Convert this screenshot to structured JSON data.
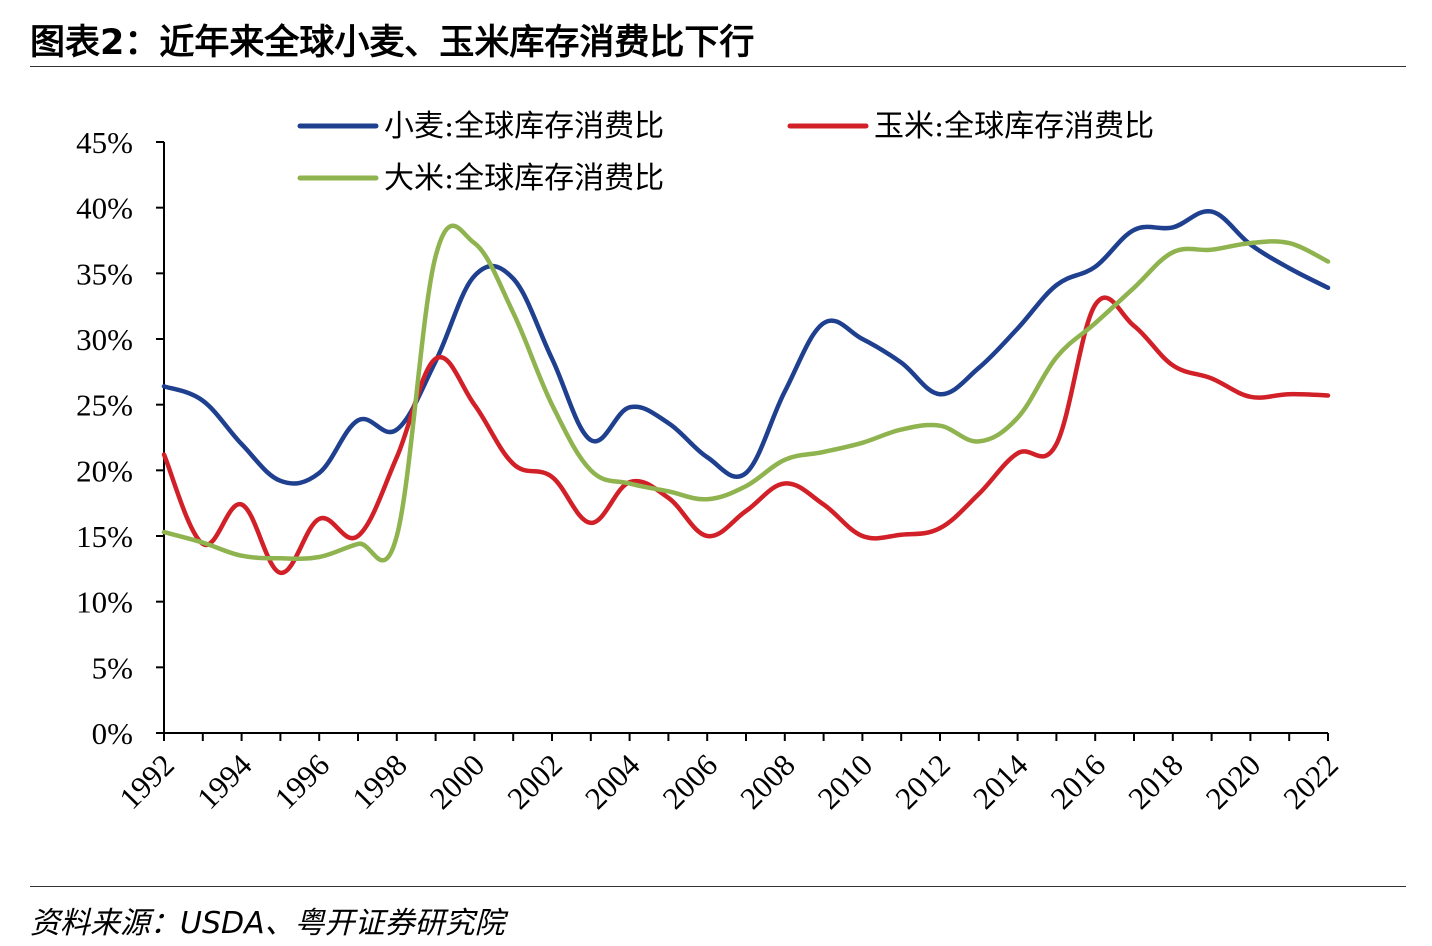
{
  "title": "图表2：近年来全球小麦、玉米库存消费比下行",
  "source": "资料来源：USDA、粤开证券研究院",
  "chart_data": {
    "type": "line",
    "title": "图表2：近年来全球小麦、玉米库存消费比下行",
    "xlabel": "",
    "ylabel": "",
    "ylim": [
      0,
      45
    ],
    "yticks": [
      "0%",
      "5%",
      "10%",
      "15%",
      "20%",
      "25%",
      "30%",
      "35%",
      "40%",
      "45%"
    ],
    "xticks": [
      "1992",
      "1994",
      "1996",
      "1998",
      "2000",
      "2002",
      "2004",
      "2006",
      "2008",
      "2010",
      "2012",
      "2014",
      "2016",
      "2018",
      "2020",
      "2022"
    ],
    "x": [
      1992,
      1993,
      1994,
      1995,
      1996,
      1997,
      1998,
      1999,
      2000,
      2001,
      2002,
      2003,
      2004,
      2005,
      2006,
      2007,
      2008,
      2009,
      2010,
      2011,
      2012,
      2013,
      2014,
      2015,
      2016,
      2017,
      2018,
      2019,
      2020,
      2021,
      2022
    ],
    "grid": false,
    "legend_position": "top",
    "series": [
      {
        "name": "小麦:全球库存消费比",
        "color": "#1f3f8f",
        "values": [
          26.4,
          25.3,
          22.0,
          19.2,
          19.8,
          23.8,
          23.1,
          28.3,
          34.8,
          34.6,
          28.5,
          22.3,
          24.8,
          23.6,
          21.0,
          19.8,
          26.0,
          31.2,
          30.0,
          28.2,
          25.8,
          27.8,
          30.8,
          34.1,
          35.5,
          38.3,
          38.5,
          39.7,
          37.2,
          35.4,
          33.9
        ]
      },
      {
        "name": "玉米:全球库存消费比",
        "color": "#d12027",
        "values": [
          21.2,
          14.4,
          17.4,
          12.2,
          16.3,
          15.0,
          21.0,
          28.5,
          25.0,
          20.5,
          19.5,
          16.0,
          19.1,
          17.9,
          15.0,
          16.9,
          19.0,
          17.4,
          15.0,
          15.1,
          15.6,
          18.2,
          21.3,
          22.0,
          32.6,
          31.0,
          28.0,
          27.0,
          25.6,
          25.8,
          25.7
        ]
      },
      {
        "name": "大米:全球库存消费比",
        "color": "#8fb34f",
        "values": [
          15.3,
          14.5,
          13.5,
          13.3,
          13.4,
          14.4,
          15.0,
          36.3,
          37.3,
          32.0,
          25.0,
          20.0,
          19.0,
          18.4,
          17.8,
          18.8,
          20.8,
          21.4,
          22.1,
          23.1,
          23.4,
          22.2,
          24.0,
          28.6,
          31.2,
          33.9,
          36.6,
          36.8,
          37.3,
          37.3,
          35.9
        ]
      }
    ]
  }
}
